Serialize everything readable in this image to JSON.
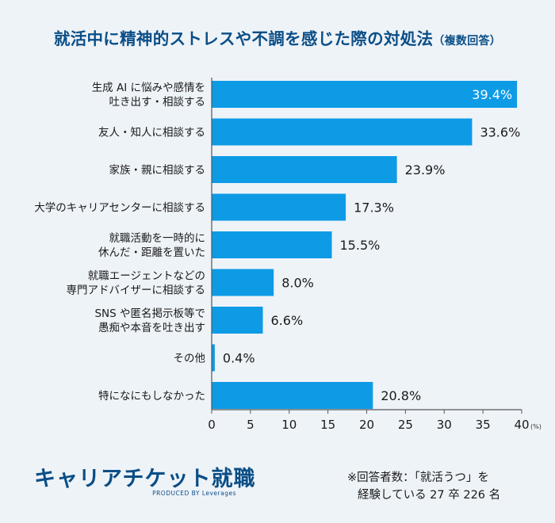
{
  "title": {
    "main": "就活中に精神的ストレスや不調を感じた際の対処法",
    "sub": "（複数回答）"
  },
  "chart_data": {
    "type": "bar",
    "orientation": "horizontal",
    "categories": [
      [
        "生成 AI に悩みや感情を",
        "吐き出す・相談する"
      ],
      [
        "友人・知人に相談する"
      ],
      [
        "家族・親に相談する"
      ],
      [
        "大学のキャリアセンターに相談する"
      ],
      [
        "就職活動を一時的に",
        "休んだ・距離を置いた"
      ],
      [
        "就職エージェントなどの",
        "専門アドバイザーに相談する"
      ],
      [
        "SNS や匿名掲示板等で",
        "愚痴や本音を吐き出す"
      ],
      [
        "その他"
      ],
      [
        "特になにもしなかった"
      ]
    ],
    "values": [
      39.4,
      33.6,
      23.9,
      17.3,
      15.5,
      8.0,
      6.6,
      0.4,
      20.8
    ],
    "value_labels": [
      "39.4%",
      "33.6%",
      "23.9%",
      "17.3%",
      "15.5%",
      "8.0%",
      "6.6%",
      "0.4%",
      "20.8%"
    ],
    "xlim": [
      0,
      40
    ],
    "xticks": [
      0,
      5,
      10,
      15,
      20,
      25,
      30,
      35,
      40
    ],
    "x_unit": "(%)",
    "grid": false,
    "bar_color": "#0d9be6"
  },
  "footer": {
    "logo_text": "キャリアチケット就職",
    "logo_sub": "PRODUCED BY Leverages",
    "note_line1": "※回答者数：「就活うつ」を",
    "note_line2": "経験している 27 卒 226 名"
  }
}
